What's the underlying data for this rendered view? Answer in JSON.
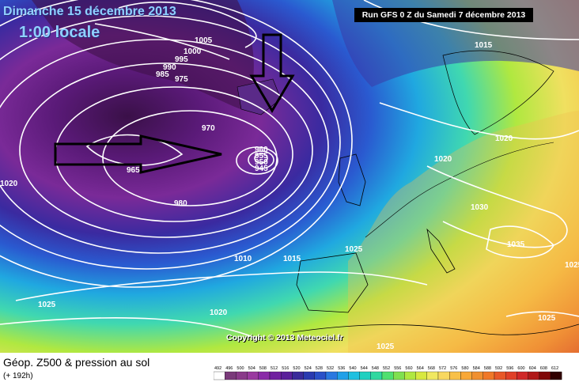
{
  "header": {
    "date": "Dimanche 15 décembre 2013",
    "time": "1:00 locale",
    "run": "Run GFS 0 Z du Samedi 7 décembre 2013"
  },
  "copyright": "Copyright © 2013 Meteociel.fr",
  "footer": {
    "title": "Géop. Z500 & pression au sol",
    "subtitle": "(+ 192h)",
    "scale_values": [
      "492",
      "496",
      "500",
      "504",
      "508",
      "512",
      "516",
      "520",
      "524",
      "528",
      "532",
      "536",
      "540",
      "544",
      "548",
      "552",
      "556",
      "560",
      "564",
      "568",
      "572",
      "576",
      "580",
      "584",
      "588",
      "592",
      "596",
      "600",
      "604",
      "608",
      "612"
    ],
    "scale_colors": [
      "#ffffff",
      "#7a3a7a",
      "#8a3a8a",
      "#9a3aa0",
      "#8a2aa8",
      "#7020a0",
      "#5a209a",
      "#3a2a9a",
      "#2a3ab0",
      "#2a50c8",
      "#2a78e0",
      "#20a0e8",
      "#20c0e0",
      "#20d0c0",
      "#30d8a0",
      "#50e070",
      "#80e050",
      "#b0e840",
      "#d8e840",
      "#f0e860",
      "#f8d860",
      "#f8c048",
      "#f8a838",
      "#f09030",
      "#f07828",
      "#e85828",
      "#e04028",
      "#d02828",
      "#b01818",
      "#800808",
      "#300000"
    ]
  },
  "isobars": [
    "1005",
    "1000",
    "995",
    "990",
    "985",
    "975",
    "970",
    "965",
    "960",
    "955",
    "950",
    "945",
    "980",
    "1010",
    "1015",
    "1015",
    "1020",
    "1020",
    "1020",
    "1020",
    "1025",
    "1025",
    "1025",
    "1025",
    "1030",
    "1035",
    "1025",
    "1010",
    "1015"
  ],
  "legend_colors_note": ""
}
